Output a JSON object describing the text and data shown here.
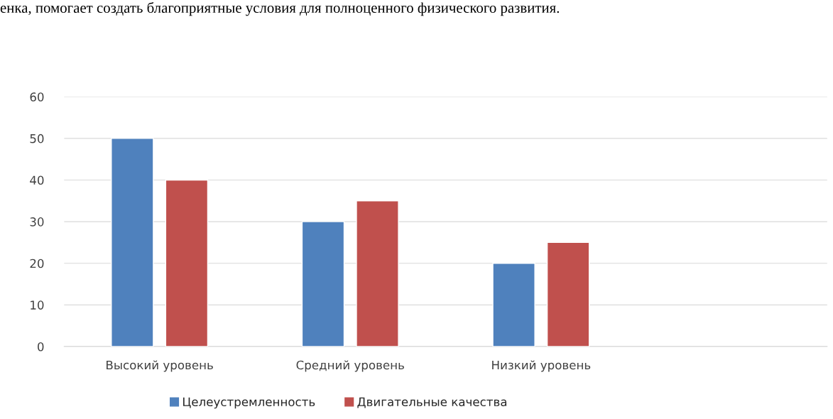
{
  "chart_data": {
    "type": "bar",
    "annotations": [
      "енка, помогает создать благоприятные условия для полноценного физического развития."
    ],
    "categories": [
      "Высокий уровень",
      "Средний уровень",
      "Низкий уровень",
      null
    ],
    "series": [
      {
        "name": "Целеустремленность",
        "color": "#4f81bd",
        "values": [
          50,
          30,
          20,
          null
        ]
      },
      {
        "name": "Двигательные качества",
        "color": "#c0504d",
        "values": [
          40,
          35,
          25,
          null
        ]
      }
    ],
    "ylim": [
      0,
      60
    ],
    "yticks": [
      0,
      10,
      20,
      30,
      40,
      50,
      60
    ],
    "grid": "y",
    "legend": "bottom"
  }
}
